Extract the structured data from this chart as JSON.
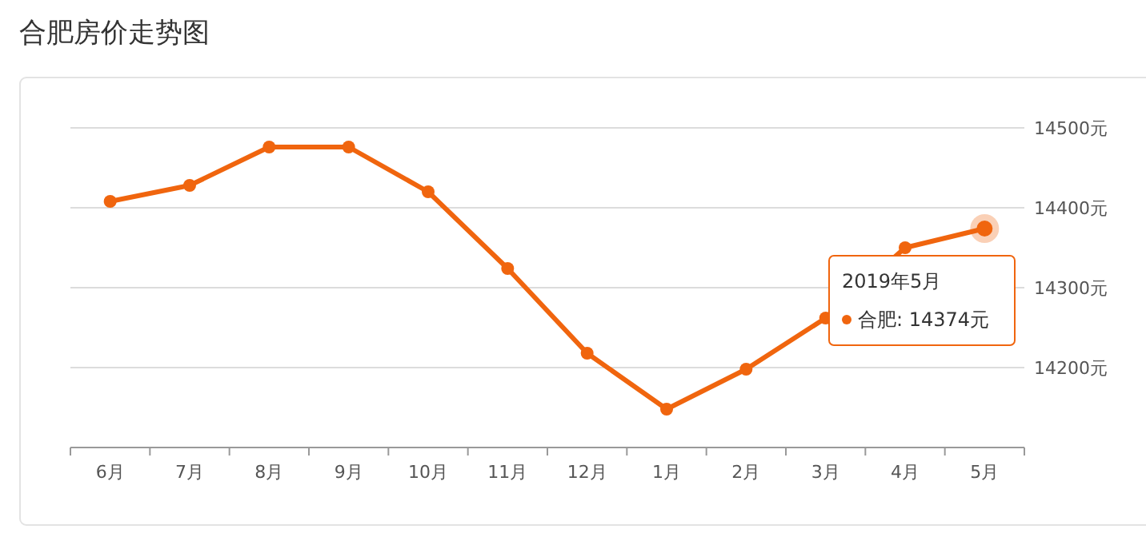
{
  "chart_data": {
    "type": "line",
    "title": "合肥房价走势图",
    "categories": [
      "6月",
      "7月",
      "8月",
      "9月",
      "10月",
      "11月",
      "12月",
      "1月",
      "2月",
      "3月",
      "4月",
      "5月"
    ],
    "series": [
      {
        "color": "#f0650e",
        "values": [
          14408,
          14428,
          14476,
          14476,
          14420,
          14324,
          14218,
          14148,
          14198,
          14262,
          14350,
          14374
        ]
      }
    ],
    "ylim": [
      14100,
      14500
    ],
    "yticks": [
      {
        "value": 14100,
        "label": null
      },
      {
        "value": 14200,
        "label": "14200元"
      },
      {
        "value": 14300,
        "label": "14300元"
      },
      {
        "value": 14400,
        "label": "14400元"
      },
      {
        "value": 14500,
        "label": "14500元"
      }
    ],
    "grid": "y",
    "marker": "circle",
    "line_style": "solid",
    "annotations": [
      "2019年5月",
      "合肥: 14374元"
    ]
  }
}
